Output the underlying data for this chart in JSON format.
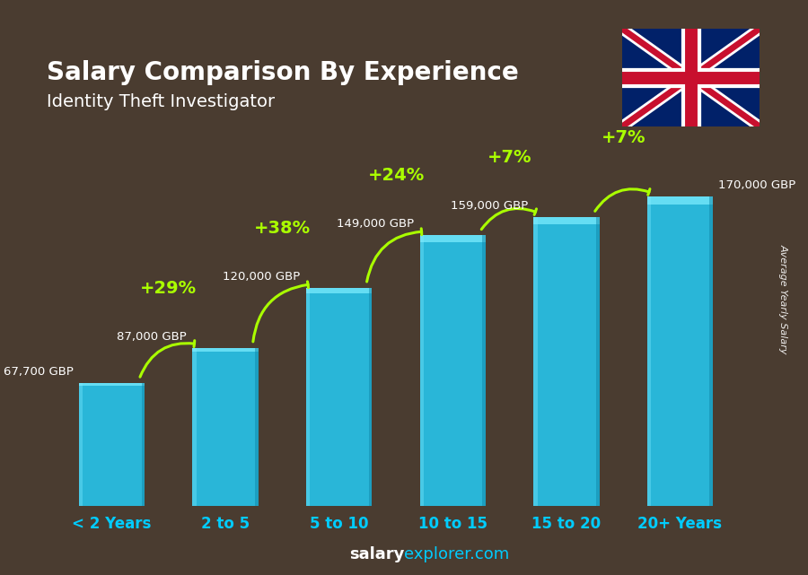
{
  "title": "Salary Comparison By Experience",
  "subtitle": "Identity Theft Investigator",
  "categories": [
    "< 2 Years",
    "2 to 5",
    "5 to 10",
    "10 to 15",
    "15 to 20",
    "20+ Years"
  ],
  "values": [
    67700,
    87000,
    120000,
    149000,
    159000,
    170000
  ],
  "labels": [
    "67,700 GBP",
    "87,000 GBP",
    "120,000 GBP",
    "149,000 GBP",
    "159,000 GBP",
    "170,000 GBP"
  ],
  "pct_changes": [
    "+29%",
    "+38%",
    "+24%",
    "+7%",
    "+7%"
  ],
  "bar_color": "#29b6d8",
  "bar_edge_top": "#7ee8f8",
  "bar_edge_side": "#1a8aaa",
  "bg_color": "#4a3c30",
  "title_color": "#ffffff",
  "label_color": "#ffffff",
  "pct_color": "#aaff00",
  "xlabel_color": "#00ccff",
  "watermark_bold": "salary",
  "watermark_light": "explorer.com",
  "ylabel_text": "Average Yearly Salary",
  "ylim": [
    0,
    215000
  ],
  "figsize": [
    9.0,
    6.41
  ],
  "dpi": 100
}
